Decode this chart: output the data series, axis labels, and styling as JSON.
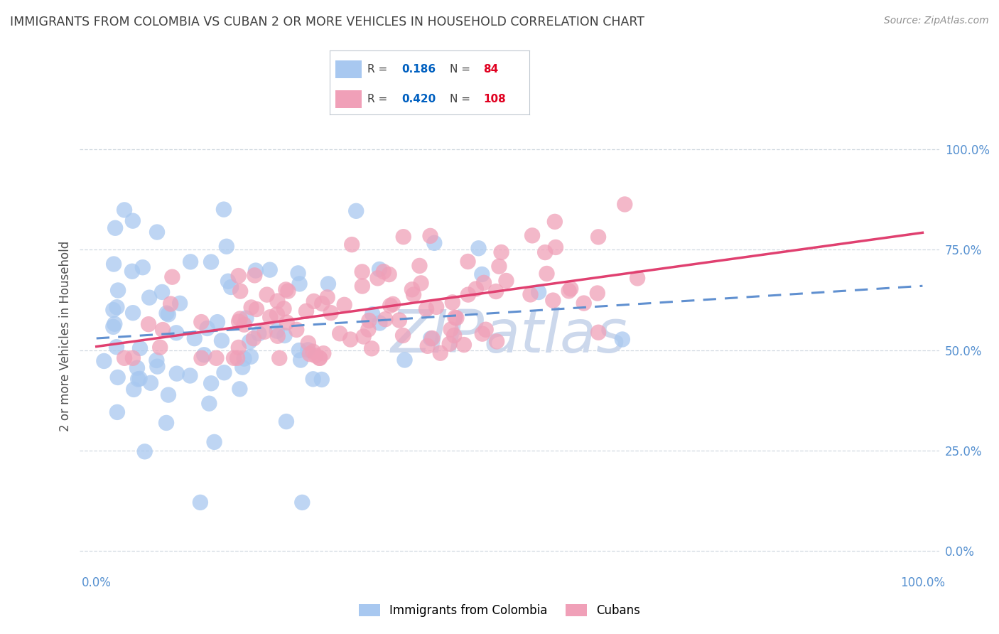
{
  "title": "IMMIGRANTS FROM COLOMBIA VS CUBAN 2 OR MORE VEHICLES IN HOUSEHOLD CORRELATION CHART",
  "source": "Source: ZipAtlas.com",
  "ylabel": "2 or more Vehicles in Household",
  "xlabel": "",
  "xlim": [
    -0.02,
    1.02
  ],
  "ylim": [
    -0.05,
    1.12
  ],
  "yticks": [
    0.0,
    0.25,
    0.5,
    0.75,
    1.0
  ],
  "ytick_labels": [
    "0.0%",
    "25.0%",
    "50.0%",
    "75.0%",
    "100.0%"
  ],
  "xtick_labels": [
    "0.0%",
    "100.0%"
  ],
  "colombia_R": 0.186,
  "colombia_N": 84,
  "cuba_R": 0.42,
  "cuba_N": 108,
  "colombia_color": "#a8c8f0",
  "cuba_color": "#f0a0b8",
  "colombia_line_color": "#6090d0",
  "cuba_line_color": "#e04070",
  "colombia_label": "Immigrants from Colombia",
  "cuba_label": "Cubans",
  "background_color": "#ffffff",
  "grid_color": "#d0d8e0",
  "title_color": "#404040",
  "legend_r_color": "#0060c0",
  "legend_n_color": "#e00020",
  "axis_label_color": "#5590d0",
  "watermark_text": "ZIPatlas",
  "watermark_color": "#ccd8ec"
}
